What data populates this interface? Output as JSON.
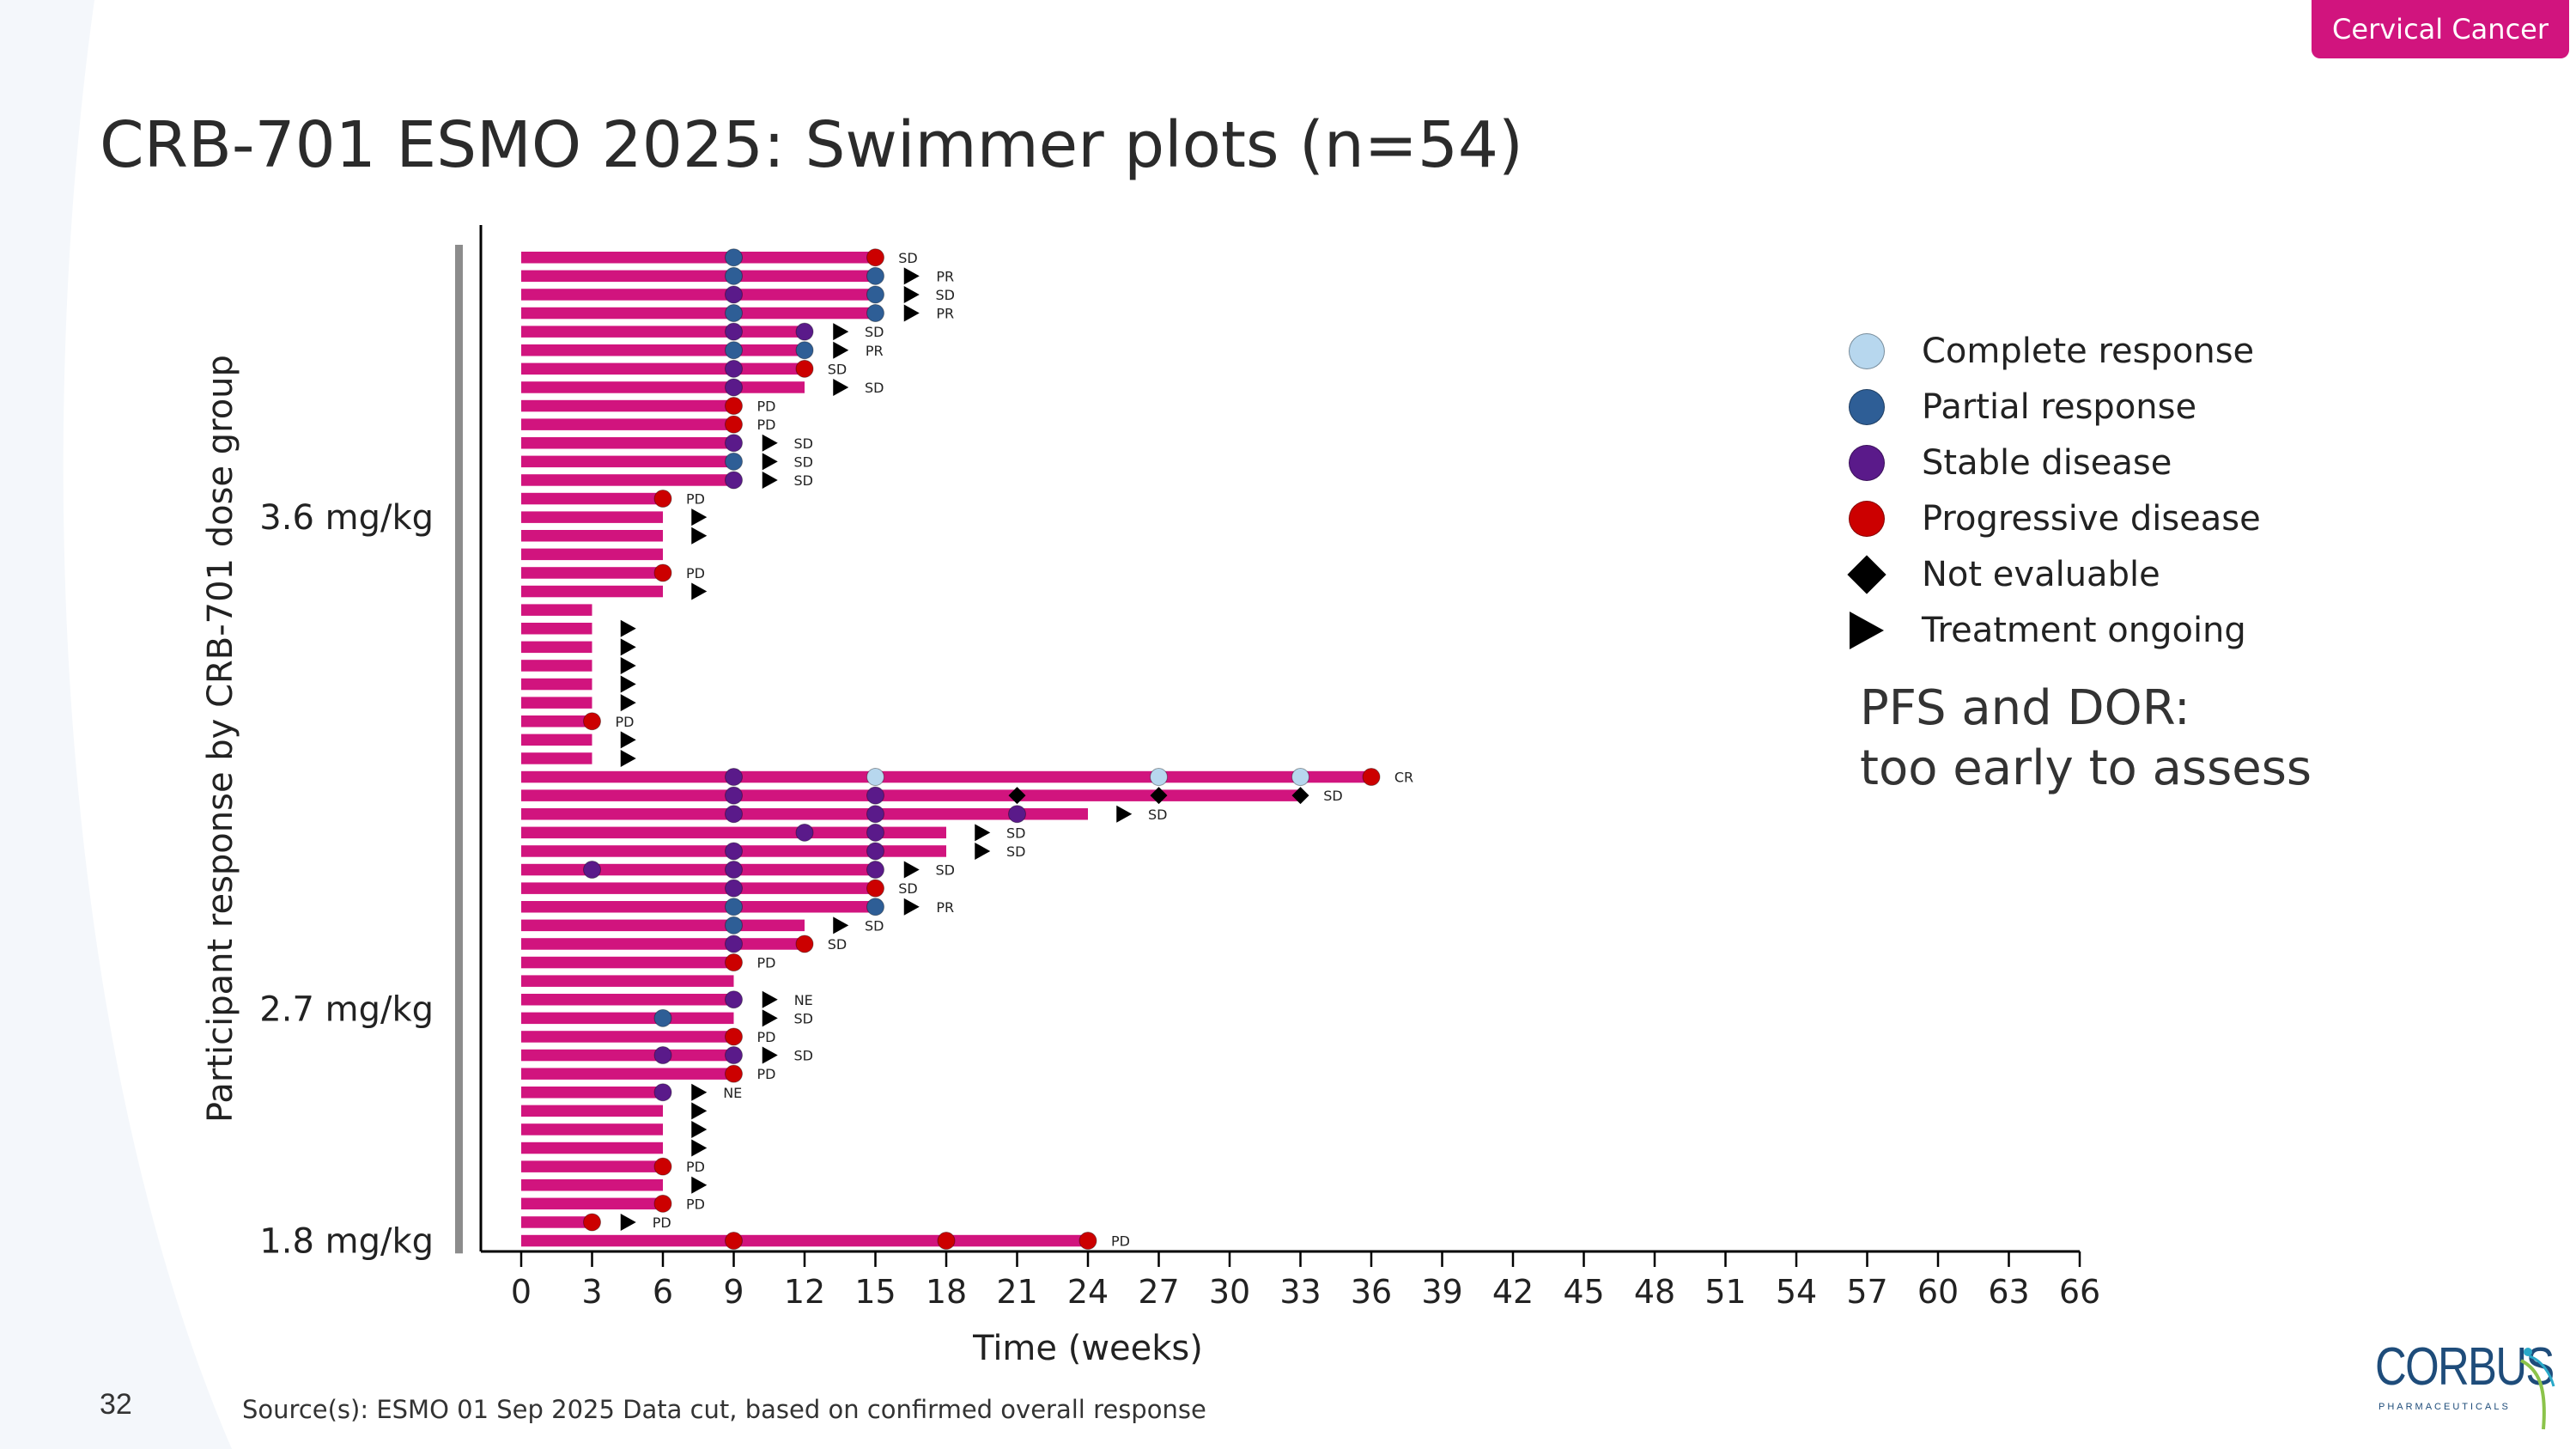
{
  "tag": "Cervical Cancer",
  "title": "CRB-701 ESMO 2025:  Swimmer plots (n=54)",
  "legend": [
    {
      "label": "Complete response",
      "symbol": "circle",
      "color": "#b7d7ee"
    },
    {
      "label": "Partial response",
      "symbol": "circle",
      "color": "#2e5e96"
    },
    {
      "label": "Stable disease",
      "symbol": "circle",
      "color": "#5a1a8a"
    },
    {
      "label": "Progressive disease",
      "symbol": "circle",
      "color": "#cc0000"
    },
    {
      "label": "Not evaluable",
      "symbol": "diamond",
      "color": "#000000"
    },
    {
      "label": "Treatment ongoing",
      "symbol": "triangle",
      "color": "#000000"
    }
  ],
  "note_line1": "PFS and DOR:",
  "note_line2": "too early to assess",
  "page_number": "32",
  "source": "Source(s): ESMO 01 Sep 2025 Data cut, based on confirmed  overall response",
  "logo_text": "CORBUS",
  "logo_subtext": "PHARMACEUTICALS",
  "colors": {
    "bar": "#d1147e",
    "CR": "#b7d7ee",
    "PR": "#2e5e96",
    "SD": "#5a1a8a",
    "PD": "#cc0000",
    "NE": "#000000",
    "ongoing": "#000000"
  },
  "chart_data": {
    "type": "swimmer",
    "xlabel": "Time (weeks)",
    "ylabel": "Participant response by CRB-701 dose group",
    "xlim": [
      0,
      66
    ],
    "xticks": [
      0,
      3,
      6,
      9,
      12,
      15,
      18,
      21,
      24,
      27,
      30,
      33,
      36,
      39,
      42,
      45,
      48,
      51,
      54,
      57,
      60,
      63,
      66
    ],
    "groups": [
      {
        "label": "3.6 mg/kg",
        "first": 0,
        "last": 28
      },
      {
        "label": "2.7 mg/kg",
        "first": 29,
        "last": 52
      },
      {
        "label": "1.8 mg/kg",
        "first": 53,
        "last": 53
      }
    ],
    "participants": [
      {
        "end": 15,
        "events": [
          {
            "w": 9,
            "r": "PR"
          },
          {
            "w": 15,
            "r": "PD"
          }
        ],
        "label": "SD"
      },
      {
        "end": 15,
        "events": [
          {
            "w": 9,
            "r": "PR"
          },
          {
            "w": 15,
            "r": "PR"
          }
        ],
        "ongoing": 16.5,
        "label": "PR"
      },
      {
        "end": 15,
        "events": [
          {
            "w": 9,
            "r": "SD"
          },
          {
            "w": 15,
            "r": "PR"
          }
        ],
        "ongoing": 16.5,
        "label": "SD"
      },
      {
        "end": 15,
        "events": [
          {
            "w": 9,
            "r": "PR"
          },
          {
            "w": 15,
            "r": "PR"
          }
        ],
        "ongoing": 16.5,
        "label": "PR"
      },
      {
        "end": 12,
        "events": [
          {
            "w": 9,
            "r": "SD"
          },
          {
            "w": 12,
            "r": "SD"
          }
        ],
        "ongoing": 13.5,
        "label": "SD"
      },
      {
        "end": 12,
        "events": [
          {
            "w": 9,
            "r": "PR"
          },
          {
            "w": 12,
            "r": "PR"
          }
        ],
        "ongoing": 13.5,
        "label": "PR"
      },
      {
        "end": 12,
        "events": [
          {
            "w": 9,
            "r": "SD"
          },
          {
            "w": 12,
            "r": "PD"
          }
        ],
        "label": "SD"
      },
      {
        "end": 12,
        "events": [
          {
            "w": 9,
            "r": "SD"
          }
        ],
        "ongoing": 13.5,
        "label": "SD"
      },
      {
        "end": 9,
        "events": [
          {
            "w": 9,
            "r": "PD"
          }
        ],
        "label": "PD"
      },
      {
        "end": 9,
        "events": [
          {
            "w": 9,
            "r": "PD"
          }
        ],
        "label": "PD"
      },
      {
        "end": 9,
        "events": [
          {
            "w": 9,
            "r": "SD"
          }
        ],
        "ongoing": 10.5,
        "label": "SD"
      },
      {
        "end": 9,
        "events": [
          {
            "w": 9,
            "r": "PR"
          }
        ],
        "ongoing": 10.5,
        "label": "SD"
      },
      {
        "end": 9,
        "events": [
          {
            "w": 9,
            "r": "SD"
          }
        ],
        "ongoing": 10.5,
        "label": "SD"
      },
      {
        "end": 6,
        "events": [
          {
            "w": 6,
            "r": "PD"
          }
        ],
        "label": "PD"
      },
      {
        "end": 6,
        "events": [],
        "ongoing": 7.5
      },
      {
        "end": 6,
        "events": [],
        "ongoing": 7.5
      },
      {
        "end": 6,
        "events": []
      },
      {
        "end": 6,
        "events": [
          {
            "w": 6,
            "r": "PD"
          }
        ],
        "label": "PD"
      },
      {
        "end": 6,
        "events": [],
        "ongoing": 7.5
      },
      {
        "end": 3,
        "events": []
      },
      {
        "end": 3,
        "events": [],
        "ongoing": 4.5
      },
      {
        "end": 3,
        "events": [],
        "ongoing": 4.5
      },
      {
        "end": 3,
        "events": [],
        "ongoing": 4.5
      },
      {
        "end": 3,
        "events": [],
        "ongoing": 4.5
      },
      {
        "end": 3,
        "events": [],
        "ongoing": 4.5
      },
      {
        "end": 3,
        "events": [
          {
            "w": 3,
            "r": "PD"
          }
        ],
        "label": "PD"
      },
      {
        "end": 3,
        "events": [],
        "ongoing": 4.5
      },
      {
        "end": 3,
        "events": [],
        "ongoing": 4.5
      },
      {
        "end": 36,
        "events": [
          {
            "w": 9,
            "r": "SD"
          },
          {
            "w": 15,
            "r": "CR"
          },
          {
            "w": 27,
            "r": "CR"
          },
          {
            "w": 33,
            "r": "CR"
          },
          {
            "w": 36,
            "r": "PD"
          }
        ],
        "label": "CR"
      },
      {
        "end": 33,
        "events": [
          {
            "w": 9,
            "r": "SD"
          },
          {
            "w": 15,
            "r": "SD"
          },
          {
            "w": 21,
            "r": "NE"
          },
          {
            "w": 27,
            "r": "NE"
          },
          {
            "w": 33,
            "r": "NE"
          }
        ],
        "label": "SD"
      },
      {
        "end": 24,
        "events": [
          {
            "w": 9,
            "r": "SD"
          },
          {
            "w": 15,
            "r": "SD"
          },
          {
            "w": 21,
            "r": "SD"
          }
        ],
        "ongoing": 25.5,
        "label": "SD"
      },
      {
        "end": 18,
        "events": [
          {
            "w": 12,
            "r": "SD"
          },
          {
            "w": 15,
            "r": "SD"
          }
        ],
        "ongoing": 19.5,
        "label": "SD"
      },
      {
        "end": 18,
        "events": [
          {
            "w": 9,
            "r": "SD"
          },
          {
            "w": 15,
            "r": "SD"
          }
        ],
        "ongoing": 19.5,
        "label": "SD"
      },
      {
        "end": 15,
        "events": [
          {
            "w": 3,
            "r": "SD"
          },
          {
            "w": 9,
            "r": "SD"
          },
          {
            "w": 15,
            "r": "SD"
          }
        ],
        "ongoing": 16.5,
        "label": "SD"
      },
      {
        "end": 15,
        "events": [
          {
            "w": 9,
            "r": "SD"
          },
          {
            "w": 15,
            "r": "PD"
          }
        ],
        "label": "SD"
      },
      {
        "end": 15,
        "events": [
          {
            "w": 9,
            "r": "PR"
          },
          {
            "w": 15,
            "r": "PR"
          }
        ],
        "ongoing": 16.5,
        "label": "PR"
      },
      {
        "end": 12,
        "events": [
          {
            "w": 9,
            "r": "PR"
          }
        ],
        "ongoing": 13.5,
        "label": "SD"
      },
      {
        "end": 12,
        "events": [
          {
            "w": 9,
            "r": "SD"
          },
          {
            "w": 12,
            "r": "PD"
          }
        ],
        "label": "SD"
      },
      {
        "end": 9,
        "events": [
          {
            "w": 9,
            "r": "PD"
          }
        ],
        "label": "PD"
      },
      {
        "end": 9,
        "events": []
      },
      {
        "end": 9,
        "events": [
          {
            "w": 9,
            "r": "SD"
          }
        ],
        "ongoing": 10.5,
        "label": "NE"
      },
      {
        "end": 9,
        "events": [
          {
            "w": 6,
            "r": "PR"
          }
        ],
        "ongoing": 10.5,
        "label": "SD"
      },
      {
        "end": 9,
        "events": [
          {
            "w": 9,
            "r": "PD"
          }
        ],
        "label": "PD"
      },
      {
        "end": 9,
        "events": [
          {
            "w": 6,
            "r": "SD"
          },
          {
            "w": 9,
            "r": "SD"
          }
        ],
        "ongoing": 10.5,
        "label": "SD"
      },
      {
        "end": 9,
        "events": [
          {
            "w": 9,
            "r": "PD"
          }
        ],
        "label": "PD"
      },
      {
        "end": 6,
        "events": [
          {
            "w": 6,
            "r": "SD"
          }
        ],
        "ongoing": 7.5,
        "label": "NE"
      },
      {
        "end": 6,
        "events": [],
        "ongoing": 7.5
      },
      {
        "end": 6,
        "events": [],
        "ongoing": 7.5
      },
      {
        "end": 6,
        "events": [],
        "ongoing": 7.5
      },
      {
        "end": 6,
        "events": [
          {
            "w": 6,
            "r": "PD"
          }
        ],
        "label": "PD"
      },
      {
        "end": 6,
        "events": [],
        "ongoing": 7.5
      },
      {
        "end": 6,
        "events": [
          {
            "w": 6,
            "r": "PD"
          }
        ],
        "label": "PD"
      },
      {
        "end": 3,
        "events": [
          {
            "w": 3,
            "r": "PD"
          }
        ],
        "ongoing": 4.5,
        "label": "PD"
      },
      {
        "end": 24,
        "events": [
          {
            "w": 9,
            "r": "PD"
          },
          {
            "w": 18,
            "r": "PD"
          },
          {
            "w": 24,
            "r": "PD"
          }
        ],
        "label": "PD"
      }
    ]
  }
}
